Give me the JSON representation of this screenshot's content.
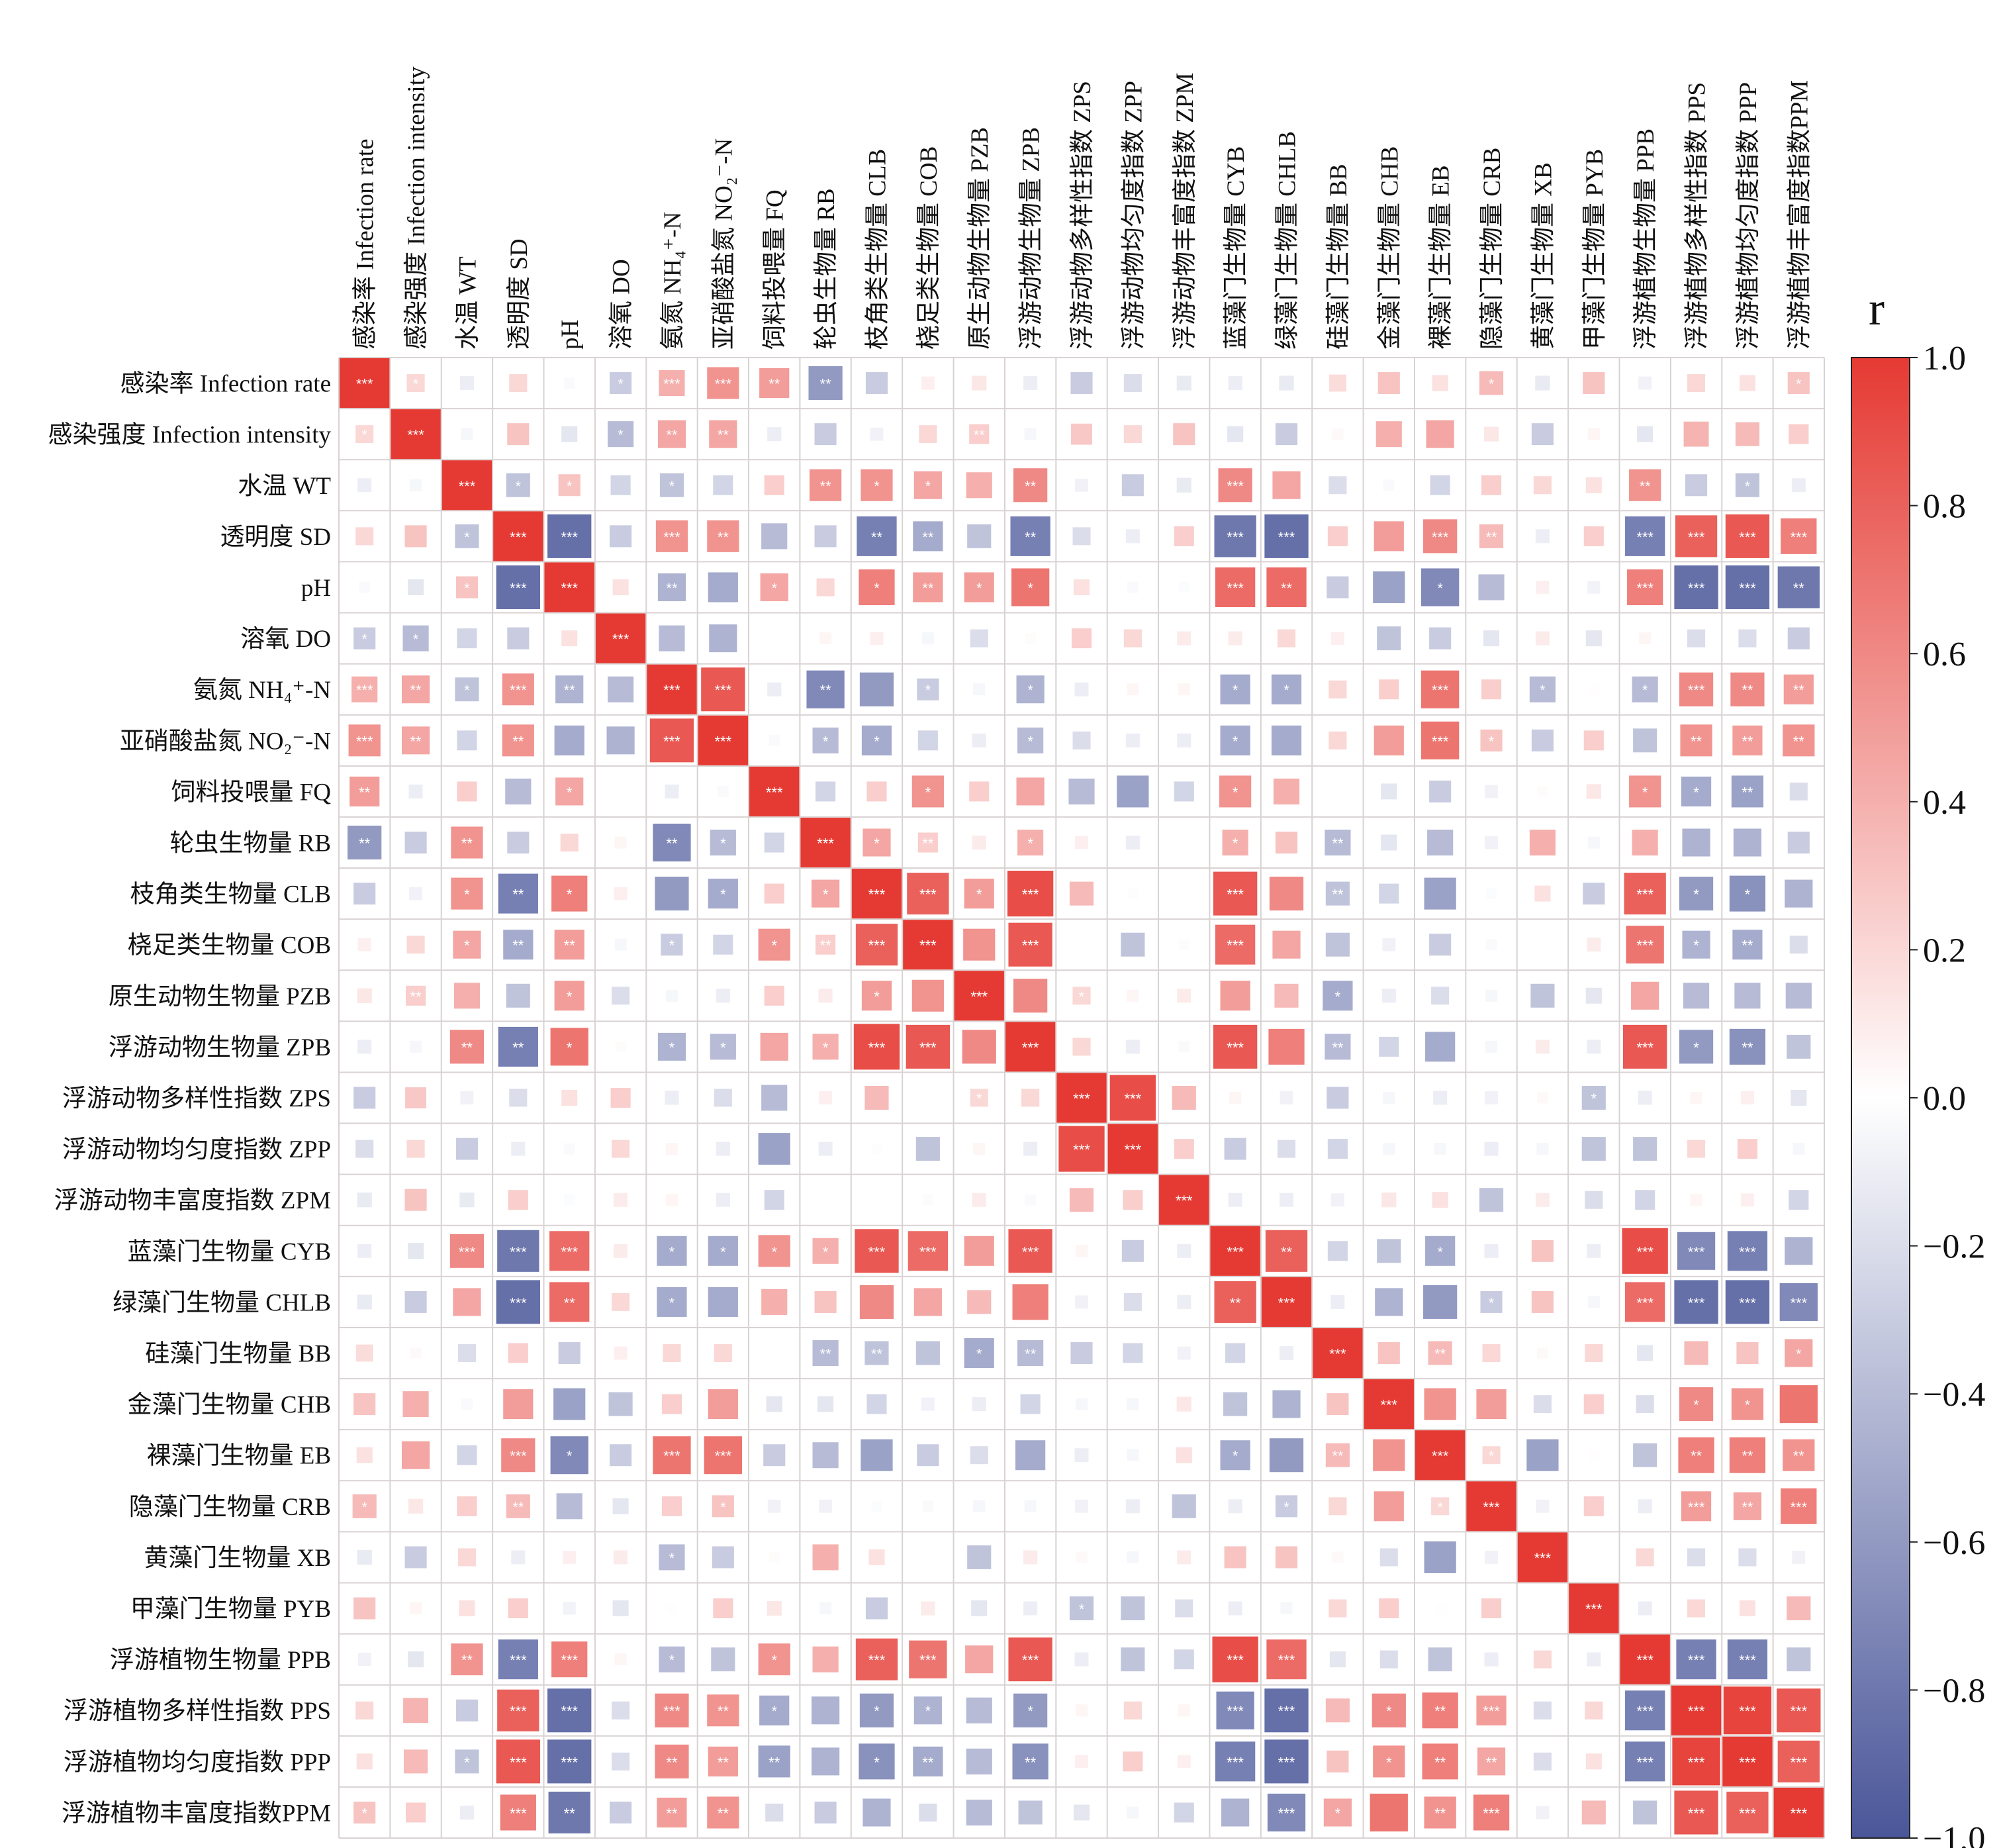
{
  "chart_data": {
    "type": "heatmap",
    "title": "",
    "legend_title": "r",
    "legend_position": "right",
    "value_range": [
      -1.0,
      1.0
    ],
    "colors": {
      "positive": "#e53a33",
      "zero": "#ffffff",
      "negative": "#4a5699",
      "grid": "#d9d2d2"
    },
    "colorbar_ticks": [
      {
        "value": 1.0,
        "label": "1.0"
      },
      {
        "value": 0.8,
        "label": "0.8"
      },
      {
        "value": 0.6,
        "label": "0.6"
      },
      {
        "value": 0.4,
        "label": "0.4"
      },
      {
        "value": 0.2,
        "label": "0.2"
      },
      {
        "value": 0.0,
        "label": "0.0"
      },
      {
        "value": -0.2,
        "label": "−0.2"
      },
      {
        "value": -0.4,
        "label": "−0.4"
      },
      {
        "value": -0.6,
        "label": "−0.6"
      },
      {
        "value": -0.8,
        "label": "−0.8"
      },
      {
        "value": -1.0,
        "label": "−1.0"
      }
    ],
    "variables": [
      "感染率 Infection rate",
      "感染强度 Infection intensity",
      "水温 WT",
      "透明度 SD",
      "pH",
      "溶氧 DO",
      "氨氮 NH₄⁺-N",
      "亚硝酸盐氮 NO₂⁻-N",
      "饲料投喂量 FQ",
      "轮虫生物量 RB",
      "枝角类生物量 CLB",
      "桡足类生物量 COB",
      "原生动物生物量 PZB",
      "浮游动物生物量 ZPB",
      "浮游动物多样性指数 ZPS",
      "浮游动物均匀度指数 ZPP",
      "浮游动物丰富度指数 ZPM",
      "蓝藻门生物量 CYB",
      "绿藻门生物量 CHLB",
      "硅藻门生物量 BB",
      "金藻门生物量 CHB",
      "裸藻门生物量 EB",
      "隐藻门生物量 CRB",
      "黄藻门生物量 XB",
      "甲藻门生物量 PYB",
      "浮游植物生物量 PPB",
      "浮游植物多样性指数 PPS",
      "浮游植物均匀度指数 PPP",
      "浮游植物丰富度指数PPM"
    ],
    "note": "Symmetric correlation matrix; upper_r[i][k] is r between variable i and variable i+1+k; diagonal r = 1 with ***",
    "diagonal_stars": "***",
    "upper_r": [
      [
        0.2,
        -0.1,
        0.2,
        -0.03,
        -0.3,
        0.4,
        0.55,
        0.5,
        -0.6,
        -0.3,
        0.08,
        0.12,
        -0.1,
        -0.3,
        -0.2,
        -0.12,
        -0.1,
        -0.12,
        0.18,
        0.3,
        0.15,
        0.35,
        -0.12,
        0.3,
        -0.08,
        0.2,
        0.15,
        0.3
      ],
      [
        -0.05,
        0.3,
        -0.15,
        -0.4,
        0.45,
        0.45,
        -0.1,
        -0.3,
        -0.08,
        0.2,
        0.25,
        -0.05,
        0.28,
        0.2,
        0.3,
        -0.15,
        -0.3,
        0.03,
        0.4,
        0.45,
        0.12,
        -0.3,
        0.05,
        -0.15,
        0.38,
        0.35,
        0.25
      ],
      [
        -0.35,
        0.3,
        -0.25,
        -0.35,
        -0.25,
        0.25,
        0.55,
        0.55,
        0.45,
        0.4,
        0.6,
        -0.08,
        -0.3,
        -0.12,
        0.6,
        0.45,
        -0.2,
        -0.03,
        -0.25,
        0.25,
        0.2,
        0.15,
        0.55,
        -0.3,
        -0.35,
        -0.1
      ],
      [
        -0.85,
        -0.3,
        0.55,
        0.55,
        -0.4,
        -0.3,
        -0.75,
        -0.5,
        -0.35,
        -0.75,
        -0.2,
        -0.1,
        0.25,
        -0.8,
        -0.85,
        0.25,
        0.5,
        0.6,
        0.35,
        -0.1,
        0.25,
        -0.75,
        0.8,
        0.85,
        0.65
      ],
      [
        0.15,
        -0.45,
        -0.5,
        0.45,
        0.2,
        0.65,
        0.5,
        0.5,
        0.7,
        0.15,
        -0.03,
        -0.02,
        0.75,
        0.75,
        -0.3,
        -0.55,
        -0.7,
        -0.4,
        0.08,
        -0.07,
        0.65,
        -0.85,
        -0.85,
        -0.8
      ],
      [
        -0.4,
        -0.45,
        0,
        0.05,
        0.08,
        -0.05,
        -0.2,
        0.02,
        0.25,
        0.2,
        0.1,
        0.1,
        0.2,
        0.08,
        -0.35,
        -0.3,
        -0.15,
        0.1,
        -0.15,
        0.05,
        -0.2,
        -0.2,
        -0.3
      ],
      [
        0.85,
        -0.1,
        -0.7,
        -0.6,
        -0.3,
        -0.05,
        -0.45,
        -0.1,
        0.05,
        0.05,
        -0.5,
        -0.5,
        0.2,
        0.25,
        0.7,
        0.25,
        -0.4,
        0.01,
        -0.4,
        0.6,
        0.6,
        0.5
      ],
      [
        -0.03,
        -0.4,
        -0.5,
        -0.25,
        -0.1,
        -0.4,
        -0.2,
        -0.1,
        -0.1,
        -0.5,
        -0.5,
        0.2,
        0.5,
        0.7,
        0.3,
        -0.3,
        0.25,
        -0.35,
        0.55,
        0.5,
        0.55
      ],
      [
        -0.25,
        0.25,
        0.55,
        0.25,
        0.45,
        -0.4,
        -0.55,
        -0.25,
        0.55,
        0.4,
        0,
        -0.15,
        -0.3,
        -0.08,
        0.02,
        0.12,
        0.55,
        -0.5,
        -0.55,
        -0.2
      ],
      [
        0.45,
        0.25,
        0.1,
        0.4,
        0.08,
        -0.1,
        0,
        0.4,
        0.3,
        -0.4,
        -0.15,
        -0.4,
        -0.08,
        0.4,
        -0.05,
        0.4,
        -0.45,
        -0.45,
        -0.3
      ],
      [
        0.8,
        0.5,
        0.9,
        0.35,
        -0.01,
        0,
        0.85,
        0.6,
        -0.35,
        -0.25,
        -0.55,
        -0.02,
        0.15,
        -0.3,
        0.8,
        -0.6,
        -0.65,
        -0.45
      ],
      [
        0.55,
        0.85,
        0,
        -0.35,
        -0.02,
        0.75,
        0.45,
        -0.35,
        -0.08,
        -0.3,
        -0.03,
        0,
        0.1,
        0.7,
        -0.45,
        -0.5,
        -0.2
      ],
      [
        0.6,
        0.2,
        0.05,
        0.1,
        0.5,
        0.35,
        -0.5,
        -0.1,
        -0.2,
        -0.05,
        -0.35,
        -0.15,
        0.45,
        -0.4,
        -0.4,
        -0.4
      ],
      [
        0.2,
        -0.1,
        -0.03,
        0.85,
        0.65,
        -0.4,
        -0.25,
        -0.5,
        -0.05,
        0.1,
        -0.1,
        0.85,
        -0.6,
        -0.65,
        -0.35
      ],
      [
        0.9,
        0.35,
        0.05,
        -0.08,
        -0.3,
        -0.05,
        -0.1,
        -0.08,
        0.03,
        -0.35,
        -0.1,
        0.05,
        0.08,
        -0.15
      ],
      [
        0.25,
        -0.3,
        -0.2,
        -0.25,
        -0.05,
        -0.05,
        -0.1,
        -0.05,
        -0.35,
        -0.35,
        0.2,
        0.25,
        -0.05
      ],
      [
        -0.1,
        -0.1,
        -0.08,
        0.12,
        0.15,
        -0.35,
        0.1,
        -0.2,
        -0.25,
        0.05,
        0.08,
        -0.25
      ],
      [
        0.8,
        -0.25,
        -0.35,
        -0.5,
        -0.1,
        0.3,
        -0.1,
        0.9,
        -0.7,
        -0.75,
        -0.45
      ],
      [
        -0.1,
        -0.45,
        -0.6,
        -0.3,
        0.3,
        -0.05,
        0.75,
        -0.85,
        -0.85,
        -0.7
      ],
      [
        0.3,
        0.35,
        0.2,
        0.03,
        0.2,
        -0.15,
        0.35,
        0.3,
        0.45
      ],
      [
        0.55,
        0.5,
        -0.2,
        0.25,
        -0.2,
        0.6,
        0.55,
        0.7
      ],
      [
        0.2,
        -0.55,
        0.01,
        -0.35,
        0.65,
        0.65,
        0.55
      ],
      [
        -0.08,
        0.25,
        -0.1,
        0.5,
        0.45,
        0.65
      ],
      [
        0,
        0.2,
        -0.2,
        -0.2,
        -0.08
      ],
      [
        -0.1,
        0.2,
        0.15,
        0.35
      ],
      [
        -0.75,
        -0.75,
        -0.35
      ],
      [
        0.95,
        0.85
      ],
      [
        0.8
      ],
      []
    ],
    "stars": [
      {
        "1": "*",
        "5": "*",
        "6": "***",
        "7": "***",
        "8": "**",
        "9": "**",
        "22": "*",
        "28": "*"
      },
      {
        "5": "*",
        "6": "**",
        "7": "**",
        "12": "**"
      },
      {
        "3": "*",
        "4": "*",
        "6": "*",
        "9": "**",
        "10": "*",
        "11": "*",
        "13": "**",
        "17": "***",
        "25": "**",
        "27": "*"
      },
      {
        "4": "***",
        "6": "***",
        "7": "**",
        "10": "**",
        "11": "**",
        "13": "**",
        "17": "***",
        "18": "***",
        "21": "***",
        "22": "**",
        "25": "***",
        "26": "***",
        "27": "***",
        "28": "***"
      },
      {
        "6": "**",
        "8": "*",
        "10": "*",
        "11": "**",
        "12": "*",
        "13": "*",
        "17": "***",
        "18": "**",
        "21": "*",
        "25": "***",
        "26": "***",
        "27": "***",
        "28": "**"
      },
      {},
      {
        "7": "***",
        "9": "**",
        "11": "*",
        "13": "*",
        "17": "*",
        "18": "*",
        "21": "***",
        "23": "*",
        "25": "*",
        "26": "***",
        "27": "**",
        "28": "**"
      },
      {
        "9": "*",
        "10": "*",
        "13": "*",
        "17": "*",
        "21": "***",
        "22": "*",
        "26": "**",
        "27": "**",
        "28": "**"
      },
      {
        "11": "*",
        "17": "*",
        "25": "*",
        "26": "*",
        "27": "**"
      },
      {
        "10": "*",
        "11": "**",
        "13": "*",
        "17": "*",
        "19": "**"
      },
      {
        "11": "***",
        "12": "*",
        "13": "***",
        "17": "***",
        "19": "**",
        "25": "***",
        "26": "*",
        "27": "*"
      },
      {
        "13": "***",
        "17": "***",
        "25": "***",
        "26": "*",
        "27": "**"
      },
      {
        "14": "*",
        "19": "*"
      },
      {
        "17": "***",
        "19": "**",
        "25": "***",
        "26": "*",
        "27": "**"
      },
      {
        "15": "***",
        "24": "*"
      },
      {},
      {},
      {
        "18": "**",
        "21": "*",
        "25": "***",
        "26": "***",
        "27": "***"
      },
      {
        "22": "*",
        "25": "***",
        "26": "***",
        "27": "***",
        "28": "***"
      },
      {
        "21": "**",
        "28": "*"
      },
      {
        "26": "*",
        "27": "*"
      },
      {
        "22": "*",
        "26": "**",
        "27": "**",
        "28": "**"
      },
      {
        "26": "***",
        "27": "**",
        "28": "***"
      },
      {},
      {},
      {
        "26": "***",
        "27": "***"
      },
      {
        "27": "***",
        "28": "***"
      },
      {
        "28": "***"
      },
      {}
    ]
  }
}
